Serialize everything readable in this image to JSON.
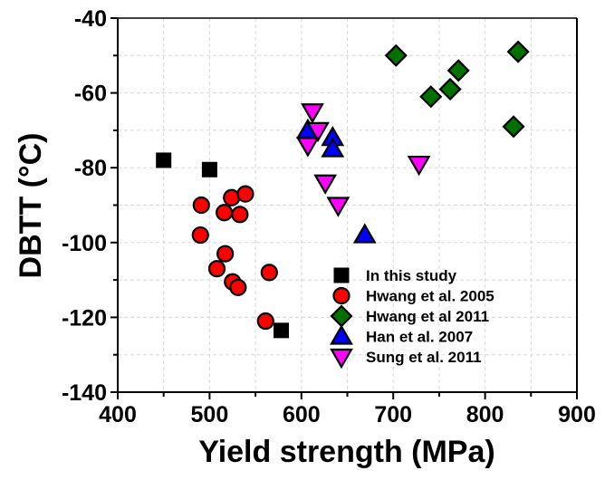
{
  "chart_data": {
    "type": "scatter",
    "title": "",
    "xlabel": "Yield strength (MPa)",
    "ylabel": "DBTT (°C)",
    "xlim": [
      400,
      900
    ],
    "ylim": [
      -140,
      -40
    ],
    "xticks": [
      400,
      500,
      600,
      700,
      800,
      900
    ],
    "yticks": [
      -40,
      -60,
      -80,
      -100,
      -120,
      -140
    ],
    "xtick_labels": [
      "400",
      "500",
      "600",
      "700",
      "800",
      "900"
    ],
    "ytick_labels": [
      "-40",
      "-60",
      "-80",
      "-100",
      "-120",
      "-140"
    ],
    "grid": true,
    "legend_position": "bottom-center",
    "series": [
      {
        "name": "In this study",
        "marker": "square",
        "color": "#000000",
        "points": [
          [
            450,
            -78
          ],
          [
            500,
            -80.5
          ],
          [
            578,
            -123.5
          ]
        ]
      },
      {
        "name": "Hwang et al. 2005",
        "marker": "circle",
        "color": "#ff0000",
        "points": [
          [
            491,
            -90
          ],
          [
            490,
            -98
          ],
          [
            524,
            -88
          ],
          [
            539,
            -87
          ],
          [
            516,
            -92
          ],
          [
            533,
            -92.5
          ],
          [
            517,
            -103
          ],
          [
            508,
            -107
          ],
          [
            525,
            -110.5
          ],
          [
            531,
            -112
          ],
          [
            565,
            -108
          ],
          [
            561,
            -121
          ]
        ]
      },
      {
        "name": "Hwang et al 2011",
        "marker": "diamond",
        "color": "#007000",
        "points": [
          [
            703,
            -50
          ],
          [
            836,
            -49
          ],
          [
            771,
            -54
          ],
          [
            762,
            -59
          ],
          [
            741,
            -61
          ],
          [
            831,
            -69
          ]
        ]
      },
      {
        "name": "Han et al. 2007",
        "marker": "triangle-up",
        "color": "#0000ff",
        "points": [
          [
            607,
            -70
          ],
          [
            634,
            -72
          ],
          [
            634,
            -75
          ],
          [
            669,
            -98
          ]
        ]
      },
      {
        "name": "Sung et al. 2011",
        "marker": "triangle-down",
        "color": "#ff00ff",
        "points": [
          [
            612,
            -65
          ],
          [
            618,
            -70
          ],
          [
            607,
            -74
          ],
          [
            626,
            -84
          ],
          [
            640,
            -90
          ],
          [
            728,
            -79
          ]
        ]
      }
    ]
  }
}
